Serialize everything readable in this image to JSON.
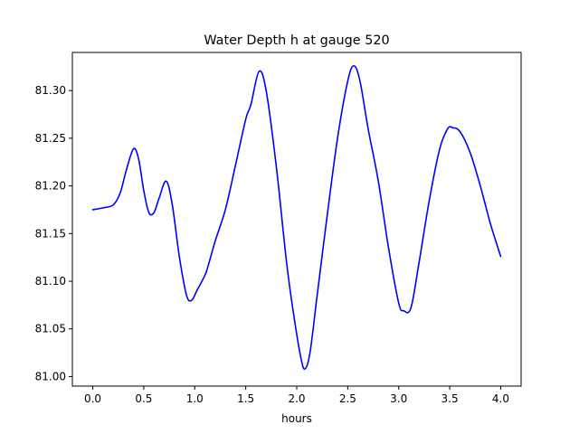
{
  "chart_data": {
    "type": "line",
    "title": "Water Depth h at gauge 520",
    "xlabel": "hours",
    "ylabel": "",
    "xlim": [
      -0.2,
      4.2
    ],
    "ylim": [
      80.99,
      81.34
    ],
    "xticks": [
      0.0,
      0.5,
      1.0,
      1.5,
      2.0,
      2.5,
      3.0,
      3.5,
      4.0
    ],
    "xtick_labels": [
      "0.0",
      "0.5",
      "1.0",
      "1.5",
      "2.0",
      "2.5",
      "3.0",
      "3.5",
      "4.0"
    ],
    "yticks": [
      81.0,
      81.05,
      81.1,
      81.15,
      81.2,
      81.25,
      81.3
    ],
    "ytick_labels": [
      "81.00",
      "81.05",
      "81.10",
      "81.15",
      "81.20",
      "81.25",
      "81.30"
    ],
    "grid": false,
    "series": [
      {
        "color": "#0000ff",
        "x": [
          0.0,
          0.1,
          0.2,
          0.27,
          0.33,
          0.4,
          0.45,
          0.5,
          0.55,
          0.6,
          0.65,
          0.72,
          0.78,
          0.85,
          0.92,
          0.97,
          1.02,
          1.08,
          1.12,
          1.2,
          1.3,
          1.4,
          1.5,
          1.55,
          1.63,
          1.7,
          1.8,
          1.9,
          1.97,
          2.04,
          2.08,
          2.13,
          2.2,
          2.3,
          2.4,
          2.5,
          2.56,
          2.62,
          2.7,
          2.8,
          2.9,
          3.0,
          3.05,
          3.12,
          3.2,
          3.3,
          3.4,
          3.48,
          3.53,
          3.6,
          3.7,
          3.8,
          3.9,
          4.0
        ],
        "y": [
          81.175,
          81.177,
          81.18,
          81.193,
          81.217,
          81.239,
          81.228,
          81.195,
          81.172,
          81.172,
          81.187,
          81.205,
          81.18,
          81.125,
          81.085,
          81.08,
          81.09,
          81.102,
          81.112,
          81.142,
          81.175,
          81.222,
          81.27,
          81.285,
          81.32,
          81.3,
          81.22,
          81.12,
          81.065,
          81.02,
          81.008,
          81.025,
          81.085,
          81.17,
          81.25,
          81.31,
          81.326,
          81.31,
          81.26,
          81.205,
          81.135,
          81.077,
          81.069,
          81.072,
          81.12,
          81.185,
          81.238,
          81.26,
          81.261,
          81.257,
          81.235,
          81.2,
          81.16,
          81.126
        ]
      }
    ]
  }
}
